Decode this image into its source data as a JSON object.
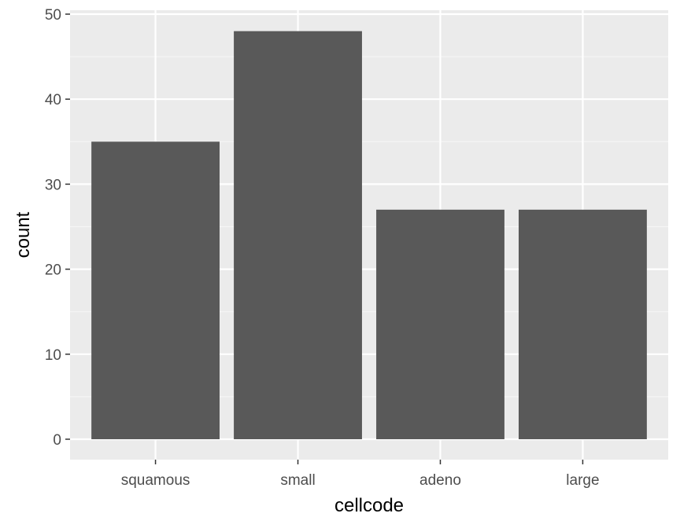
{
  "chart_data": {
    "type": "bar",
    "categories": [
      "squamous",
      "small",
      "adeno",
      "large"
    ],
    "values": [
      35,
      48,
      27,
      27
    ],
    "xlabel": "cellcode",
    "ylabel": "count",
    "ylim": [
      0,
      50
    ],
    "yticks": [
      0,
      10,
      20,
      30,
      40,
      50
    ],
    "grid": true,
    "legend": "none"
  },
  "colors": {
    "panel_background": "#ebebeb",
    "grid_major": "#ffffff",
    "grid_minor": "#f5f5f5",
    "bar_fill": "#595959",
    "tick_text": "#4d4d4d",
    "axis_title": "#000000"
  }
}
